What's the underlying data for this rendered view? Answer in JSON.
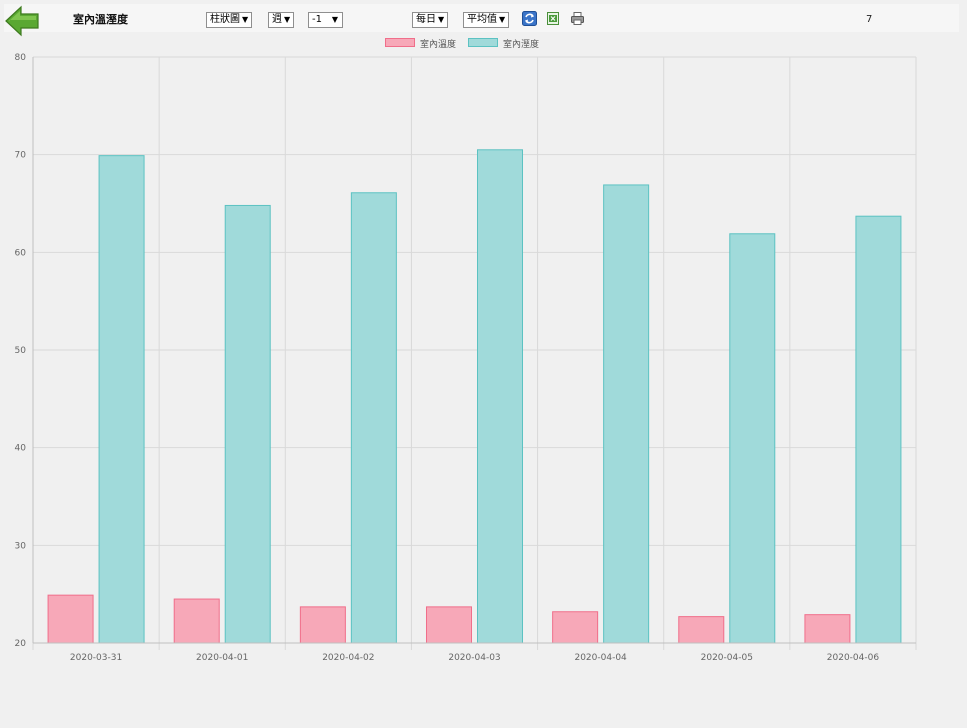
{
  "header": {
    "title": "室內溫溼度",
    "chart_type_select": "柱狀圖",
    "period_select": "週",
    "offset_select": "-1",
    "interval_select": "每日",
    "aggregate_select": "平均值",
    "count": "7"
  },
  "icons": {
    "back": "back-arrow-icon",
    "refresh": "refresh-icon",
    "excel": "excel-export-icon",
    "print": "print-icon"
  },
  "colors": {
    "temperature_fill": "#f7a8b8",
    "temperature_border": "#f06e8a",
    "humidity_fill": "#a0dada",
    "humidity_border": "#5cc2c2",
    "grid": "#d9d9d9",
    "background": "#f0f0f0"
  },
  "chart_data": {
    "type": "bar",
    "categories": [
      "2020-03-31",
      "2020-04-01",
      "2020-04-02",
      "2020-04-03",
      "2020-04-04",
      "2020-04-05",
      "2020-04-06"
    ],
    "series": [
      {
        "name": "室內溫度",
        "values": [
          24.9,
          24.5,
          23.7,
          23.7,
          23.2,
          22.7,
          22.9
        ]
      },
      {
        "name": "室內溼度",
        "values": [
          69.9,
          64.8,
          66.1,
          70.5,
          66.9,
          61.9,
          63.7
        ]
      }
    ],
    "ylim": [
      20,
      80
    ],
    "yticks": [
      "20",
      "30",
      "40",
      "50",
      "60",
      "70",
      "80"
    ],
    "legend_position": "top-center",
    "grid": true
  }
}
